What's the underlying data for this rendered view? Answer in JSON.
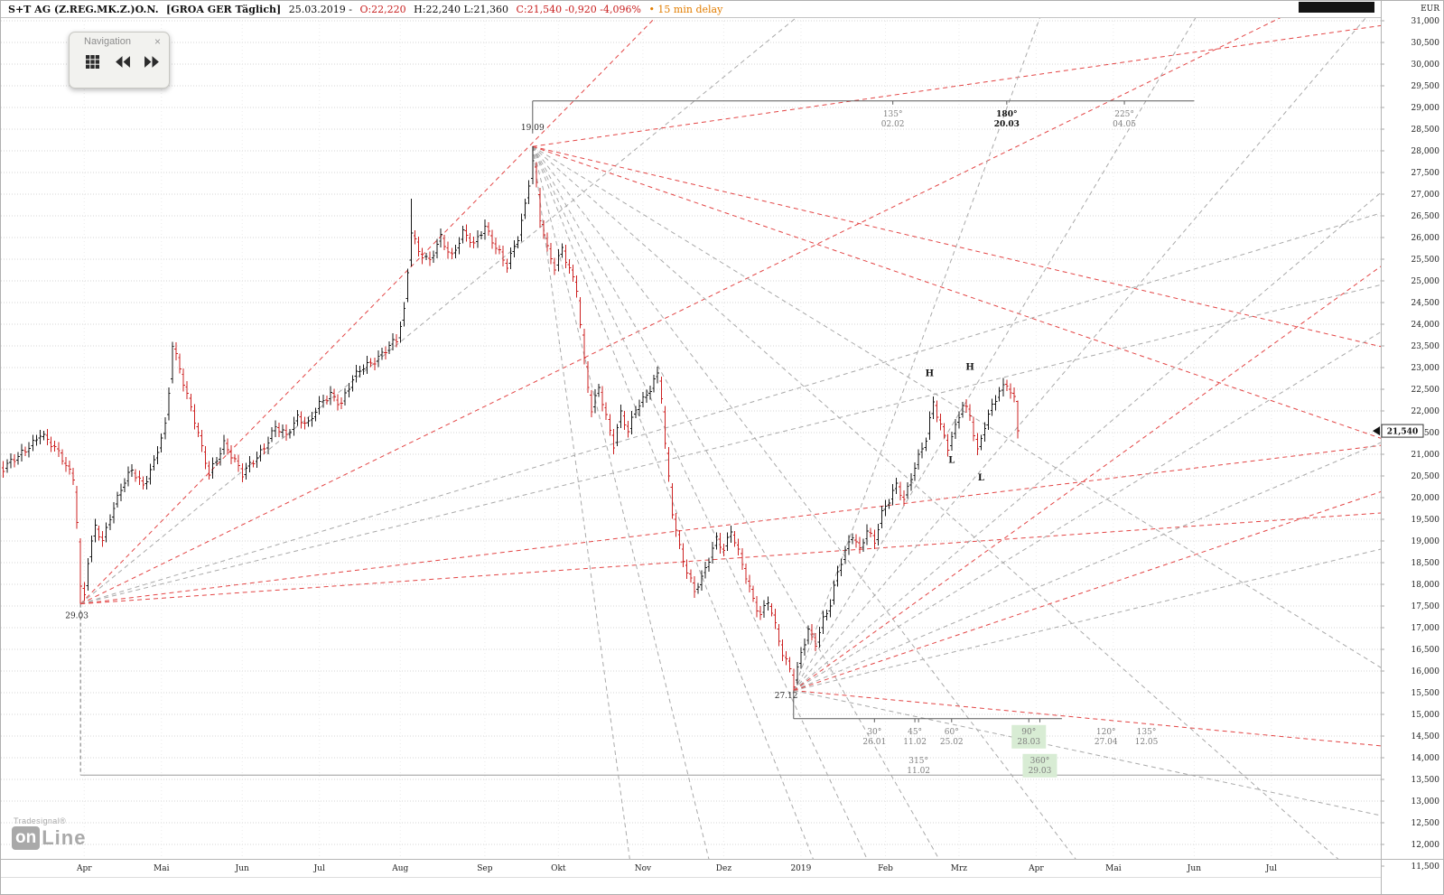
{
  "header": {
    "instrument": "S+T AG (Z.REG.MK.Z.)O.N.",
    "feed": "[GROA GER Täglich]",
    "date": "25.03.2019 -",
    "open": "O:22,220",
    "high_low": "H:22,240 L:21,360",
    "close_change": "C:21,540 -0,920 -4,096%",
    "delay": "• 15 min delay"
  },
  "navigation_panel": {
    "title": "Navigation",
    "close_label": "×"
  },
  "logo": {
    "brand": "Tradesignal®",
    "on": "on",
    "line": "Line"
  },
  "colors": {
    "up": "#161616",
    "down": "#cc2020",
    "ray_red": "#e34646",
    "ray_gray": "#a9a9a9",
    "grid": "#d6d6d6",
    "grid_v": "#ebebeb",
    "highlight": "#d8ecd4",
    "ruler": "#5a5a5a",
    "delay": "#e27d00",
    "negative": "#c81e1e"
  },
  "chart_data": {
    "type": "ohlc",
    "title": "S+T AG (Z.REG.MK.Z.)O.N. [GROA GER Täglich]",
    "ylabel": "EUR",
    "date_shown": "25.03.2019",
    "quote": {
      "o": 22.22,
      "h": 22.24,
      "l": 21.36,
      "c": 21.54,
      "change": -0.92,
      "change_pct": "-4,096%"
    },
    "y_axis": {
      "max": 31.0,
      "min": 11.5,
      "step": 0.5,
      "currency": "EUR"
    },
    "x_axis": {
      "months": [
        {
          "label": "Apr",
          "t": 18
        },
        {
          "label": "Mai",
          "t": 39
        },
        {
          "label": "Jun",
          "t": 61
        },
        {
          "label": "Jul",
          "t": 82
        },
        {
          "label": "Aug",
          "t": 104
        },
        {
          "label": "Sep",
          "t": 127
        },
        {
          "label": "Okt",
          "t": 147
        },
        {
          "label": "Nov",
          "t": 170
        },
        {
          "label": "Dez",
          "t": 192
        },
        {
          "label": "2019",
          "t": 213
        },
        {
          "label": "Feb",
          "t": 236
        },
        {
          "label": "Mrz",
          "t": 256
        },
        {
          "label": "Apr",
          "t": 277
        },
        {
          "label": "Mai",
          "t": 298
        },
        {
          "label": "Jun",
          "t": 320
        },
        {
          "label": "Jul",
          "t": 341
        }
      ]
    },
    "bars": {
      "t_start": -4,
      "t_end": 272,
      "anchors": [
        [
          -4,
          20.7
        ],
        [
          0,
          20.9
        ],
        [
          3,
          21.2
        ],
        [
          6,
          21.5
        ],
        [
          9,
          21.2
        ],
        [
          12,
          20.9
        ],
        [
          15,
          20.5
        ],
        [
          16,
          19.5
        ],
        [
          17,
          17.9
        ],
        [
          18,
          17.75
        ],
        [
          19,
          18.5
        ],
        [
          21,
          19.3
        ],
        [
          23,
          19.0
        ],
        [
          25,
          19.6
        ],
        [
          28,
          20.2
        ],
        [
          31,
          20.6
        ],
        [
          34,
          20.3
        ],
        [
          37,
          20.85
        ],
        [
          40,
          21.6
        ],
        [
          41,
          22.4
        ],
        [
          42,
          23.5
        ],
        [
          44,
          23.0
        ],
        [
          46,
          22.4
        ],
        [
          48,
          21.8
        ],
        [
          50,
          21.1
        ],
        [
          52,
          20.5
        ],
        [
          54,
          20.9
        ],
        [
          56,
          21.3
        ],
        [
          58,
          21.0
        ],
        [
          61,
          20.5
        ],
        [
          64,
          20.85
        ],
        [
          67,
          21.2
        ],
        [
          70,
          21.6
        ],
        [
          73,
          21.4
        ],
        [
          76,
          21.9
        ],
        [
          79,
          21.7
        ],
        [
          82,
          22.1
        ],
        [
          85,
          22.4
        ],
        [
          88,
          22.2
        ],
        [
          91,
          22.7
        ],
        [
          94,
          23.0
        ],
        [
          97,
          23.2
        ],
        [
          100,
          23.4
        ],
        [
          103,
          23.6
        ],
        [
          105,
          24.3
        ],
        [
          107,
          26.2
        ],
        [
          109,
          25.7
        ],
        [
          112,
          25.4
        ],
        [
          115,
          26.0
        ],
        [
          118,
          25.6
        ],
        [
          121,
          26.1
        ],
        [
          124,
          25.8
        ],
        [
          127,
          26.3
        ],
        [
          130,
          25.8
        ],
        [
          133,
          25.3
        ],
        [
          136,
          26.0
        ],
        [
          138,
          26.8
        ],
        [
          140,
          27.8
        ],
        [
          141,
          27.2
        ],
        [
          142,
          26.4
        ],
        [
          144,
          25.7
        ],
        [
          146,
          25.3
        ],
        [
          148,
          25.8
        ],
        [
          150,
          25.3
        ],
        [
          152,
          24.8
        ],
        [
          154,
          23.1
        ],
        [
          156,
          22.0
        ],
        [
          158,
          22.6
        ],
        [
          160,
          21.9
        ],
        [
          162,
          21.2
        ],
        [
          164,
          21.9
        ],
        [
          166,
          21.5
        ],
        [
          168,
          22.1
        ],
        [
          170,
          22.3
        ],
        [
          172,
          22.5
        ],
        [
          174,
          22.8
        ],
        [
          175,
          22.3
        ],
        [
          176,
          21.2
        ],
        [
          178,
          19.7
        ],
        [
          180,
          18.9
        ],
        [
          182,
          18.3
        ],
        [
          184,
          17.8
        ],
        [
          186,
          18.1
        ],
        [
          188,
          18.6
        ],
        [
          190,
          19.1
        ],
        [
          192,
          18.8
        ],
        [
          194,
          19.2
        ],
        [
          196,
          18.7
        ],
        [
          198,
          18.2
        ],
        [
          200,
          17.7
        ],
        [
          202,
          17.3
        ],
        [
          204,
          17.6
        ],
        [
          206,
          17.0
        ],
        [
          208,
          16.4
        ],
        [
          210,
          16.1
        ],
        [
          211,
          15.75
        ],
        [
          213,
          16.4
        ],
        [
          215,
          16.9
        ],
        [
          217,
          16.6
        ],
        [
          219,
          17.2
        ],
        [
          221,
          17.6
        ],
        [
          223,
          18.3
        ],
        [
          225,
          18.7
        ],
        [
          227,
          19.1
        ],
        [
          229,
          18.8
        ],
        [
          231,
          19.3
        ],
        [
          233,
          19.0
        ],
        [
          235,
          19.6
        ],
        [
          237,
          19.9
        ],
        [
          239,
          20.3
        ],
        [
          241,
          20.0
        ],
        [
          243,
          20.5
        ],
        [
          245,
          20.9
        ],
        [
          247,
          21.3
        ],
        [
          249,
          22.2
        ],
        [
          251,
          21.7
        ],
        [
          253,
          21.2
        ],
        [
          255,
          21.6
        ],
        [
          257,
          22.1
        ],
        [
          259,
          21.9
        ],
        [
          261,
          21.1
        ],
        [
          263,
          21.7
        ],
        [
          265,
          22.1
        ],
        [
          267,
          22.4
        ],
        [
          269,
          22.6
        ],
        [
          271,
          22.3
        ],
        [
          272,
          21.54
        ]
      ],
      "extreme_overrides": [
        {
          "t": 17,
          "low": 17.55
        },
        {
          "t": 107,
          "high": 26.9
        },
        {
          "t": 140,
          "high": 28.1
        },
        {
          "t": 174,
          "high": 23.0
        },
        {
          "t": 211,
          "low": 15.55
        }
      ],
      "last": {
        "o": 22.22,
        "h": 22.24,
        "l": 21.36,
        "c": 21.54
      }
    },
    "pivots": [
      {
        "label": "19.09",
        "t": 140,
        "price": 28.4,
        "side": "above"
      },
      {
        "label": "29.03",
        "t": 16,
        "price": 17.45,
        "side": "below"
      },
      {
        "label": "27.12",
        "t": 209,
        "price": 15.6,
        "side": "below"
      }
    ],
    "gann_rays": [
      [
        17,
        17.55,
        176,
        31.3,
        "red"
      ],
      [
        17,
        17.55,
        215,
        31.3,
        "gray"
      ],
      [
        17,
        17.55,
        349,
        31.3,
        "red"
      ],
      [
        17,
        17.55,
        380,
        26.8,
        "gray"
      ],
      [
        17,
        17.55,
        380,
        25.1,
        "gray"
      ],
      [
        17,
        17.55,
        380,
        21.3,
        "red"
      ],
      [
        17,
        17.55,
        380,
        19.7,
        "red"
      ],
      [
        140,
        28.1,
        167,
        11.3,
        "gray"
      ],
      [
        140,
        28.1,
        189,
        11.3,
        "gray"
      ],
      [
        140,
        28.1,
        218,
        11.3,
        "gray"
      ],
      [
        140,
        28.1,
        233,
        11.3,
        "gray"
      ],
      [
        140,
        28.1,
        253,
        11.3,
        "gray"
      ],
      [
        140,
        28.1,
        291,
        11.3,
        "gray"
      ],
      [
        140,
        28.1,
        380,
        10.1,
        "gray"
      ],
      [
        140,
        28.1,
        380,
        15.6,
        "gray"
      ],
      [
        140,
        28.1,
        380,
        23.3,
        "red"
      ],
      [
        140,
        28.1,
        380,
        21.1,
        "red"
      ],
      [
        140,
        28.1,
        380,
        31.0,
        "red"
      ],
      [
        211,
        15.55,
        279,
        31.3,
        "gray"
      ],
      [
        211,
        15.55,
        322,
        31.3,
        "gray"
      ],
      [
        211,
        15.55,
        369,
        31.3,
        "gray"
      ],
      [
        211,
        15.55,
        380,
        27.7,
        "gray"
      ],
      [
        211,
        15.55,
        380,
        24.3,
        "gray"
      ],
      [
        211,
        15.55,
        380,
        21.6,
        "gray"
      ],
      [
        211,
        15.55,
        380,
        19.0,
        "gray"
      ],
      [
        211,
        15.55,
        380,
        25.9,
        "red"
      ],
      [
        211,
        15.55,
        380,
        20.4,
        "red"
      ],
      [
        211,
        15.55,
        380,
        14.2,
        "red"
      ],
      [
        211,
        15.55,
        380,
        12.5,
        "gray"
      ]
    ],
    "cycle_rulers": [
      {
        "pivot": "19.09",
        "price": 29.15,
        "t1": 140,
        "t2": 320,
        "tick_to": 28.4,
        "marks": [
          {
            "deg": "135°",
            "date": "02.02",
            "t": 238,
            "row": 0,
            "bold": false
          },
          {
            "deg": "180°",
            "date": "20.03",
            "t": 269,
            "row": 0,
            "bold": true
          },
          {
            "deg": "225°",
            "date": "04.05",
            "t": 301,
            "row": 0,
            "bold": false
          }
        ]
      },
      {
        "pivot": "27.12",
        "price": 14.9,
        "t1": 211,
        "t2": 284,
        "tick_to": 15.55,
        "marks": [
          {
            "deg": "30°",
            "date": "26.01",
            "t": 233,
            "row": 0
          },
          {
            "deg": "45°",
            "date": "11.02",
            "t": 244,
            "row": 0
          },
          {
            "deg": "60°",
            "date": "25.02",
            "t": 254,
            "row": 0
          },
          {
            "deg": "90°",
            "date": "28.03",
            "t": 275,
            "row": 0,
            "highlight": true
          },
          {
            "deg": "120°",
            "date": "27.04",
            "t": 296,
            "row": 0
          },
          {
            "deg": "135°",
            "date": "12.05",
            "t": 307,
            "row": 0
          },
          {
            "deg": "315°",
            "date": "11.02",
            "t": 245,
            "row": 1
          },
          {
            "deg": "360°",
            "date": "29.03",
            "t": 278,
            "row": 1,
            "highlight": true
          }
        ]
      }
    ],
    "hl_markers": [
      {
        "text": "H",
        "t": 248,
        "price": 22.8
      },
      {
        "text": "H",
        "t": 259,
        "price": 22.95
      },
      {
        "text": "L",
        "t": 254,
        "price": 20.8
      },
      {
        "text": "L",
        "t": 262,
        "price": 20.4
      }
    ],
    "support_line": {
      "price": 13.6,
      "t1": 17,
      "t2": 372
    },
    "pivot_anchor_line": {
      "t": 17,
      "p1": 17.55,
      "p2": 13.6
    },
    "price_marker": {
      "price": 21.54,
      "label": "21,540"
    }
  }
}
